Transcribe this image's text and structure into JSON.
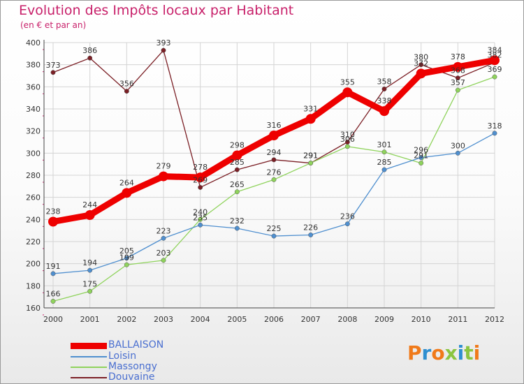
{
  "header": {
    "title": "Evolution des Impôts locaux par Habitant",
    "subtitle": "(en € et par an)"
  },
  "chart_data": {
    "type": "line",
    "title": "Evolution des Impôts locaux par Habitant",
    "subtitle": "(en € et par an)",
    "xlabel": "",
    "ylabel": "",
    "ylim": [
      160,
      400
    ],
    "ytick_step": 20,
    "yticks": [
      "160",
      "180",
      "200",
      "220",
      "240",
      "260",
      "280",
      "300",
      "320",
      "340",
      "360",
      "380",
      "400"
    ],
    "grid": true,
    "legend_position": "bottom-left",
    "categories": [
      "2000",
      "2001",
      "2002",
      "2003",
      "2004",
      "2005",
      "2006",
      "2007",
      "2008",
      "2009",
      "2010",
      "2011",
      "2012"
    ],
    "series": [
      {
        "name": "Douvaine",
        "color": "#7b1f25",
        "values": [
          373,
          386,
          356,
          393,
          269,
          285,
          294,
          291,
          310,
          358,
          380,
          368,
          382
        ]
      },
      {
        "name": "Massongy",
        "color": "#8fd35c",
        "values": [
          166,
          175,
          199,
          203,
          240,
          265,
          276,
          291,
          306,
          301,
          291,
          357,
          369
        ]
      },
      {
        "name": "Loisin",
        "color": "#4f8fcf",
        "values": [
          191,
          194,
          205,
          223,
          235,
          232,
          225,
          226,
          236,
          285,
          296,
          300,
          318
        ]
      },
      {
        "name": "BALLAISON",
        "color": "#ee0000",
        "values": [
          238,
          244,
          264,
          279,
          278,
          298,
          316,
          331,
          355,
          338,
          372,
          378,
          384
        ]
      }
    ]
  },
  "legend": [
    {
      "label": "BALLAISON",
      "color": "#ee0000",
      "text_color": "#4a6fd0"
    },
    {
      "label": "Loisin",
      "color": "#4f8fcf",
      "text_color": "#4a6fd0"
    },
    {
      "label": "Massongy",
      "color": "#8fd35c",
      "text_color": "#4a6fd0"
    },
    {
      "label": "Douvaine",
      "color": "#7b1f25",
      "text_color": "#4a6fd0"
    }
  ],
  "logo": {
    "text": "Proxiti"
  }
}
